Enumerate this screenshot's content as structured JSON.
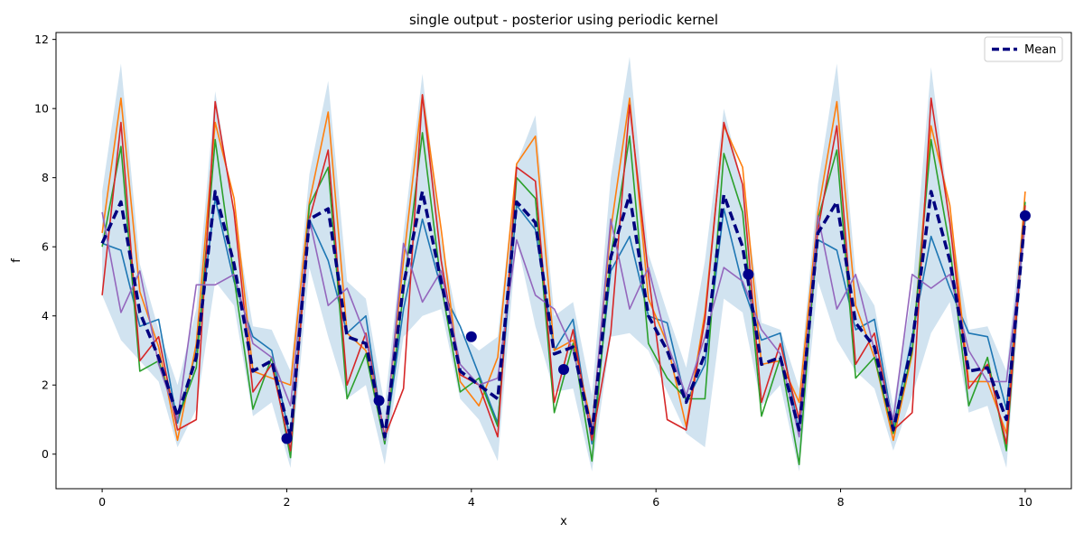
{
  "chart_data": {
    "type": "line",
    "title": "single output - posterior using periodic kernel",
    "xlabel": "x",
    "ylabel": "f",
    "xlim": [
      -0.5,
      10.5
    ],
    "ylim": [
      -1.0,
      12.2
    ],
    "xticks": [
      0,
      2,
      4,
      6,
      8,
      10
    ],
    "yticks": [
      0,
      2,
      4,
      6,
      8,
      10,
      12
    ],
    "grid": false,
    "legend": {
      "placement": "top-right",
      "entries": [
        "Mean"
      ]
    },
    "x": [
      0.0,
      0.204,
      0.408,
      0.612,
      0.816,
      1.02,
      1.224,
      1.429,
      1.633,
      1.837,
      2.041,
      2.245,
      2.449,
      2.653,
      2.857,
      3.061,
      3.265,
      3.469,
      3.673,
      3.878,
      4.082,
      4.286,
      4.49,
      4.694,
      4.898,
      5.102,
      5.306,
      5.51,
      5.714,
      5.918,
      6.122,
      6.327,
      6.531,
      6.735,
      6.939,
      7.143,
      7.347,
      7.551,
      7.755,
      7.959,
      8.163,
      8.367,
      8.571,
      8.776,
      8.98,
      9.184,
      9.388,
      9.592,
      9.796,
      10.0
    ],
    "mean": {
      "name": "Mean",
      "color": "#00007f",
      "values": [
        6.1,
        7.3,
        4.1,
        2.8,
        1.1,
        2.8,
        7.6,
        5.5,
        2.4,
        2.7,
        0.5,
        6.8,
        7.1,
        3.4,
        3.2,
        0.5,
        4.9,
        7.6,
        5.0,
        2.4,
        2.0,
        1.6,
        7.3,
        6.7,
        2.9,
        3.1,
        0.6,
        5.7,
        7.5,
        4.0,
        3.0,
        1.5,
        2.9,
        7.5,
        6.0,
        2.6,
        2.8,
        0.7,
        6.4,
        7.3,
        3.8,
        3.1,
        0.7,
        3.2,
        7.6,
        5.6,
        2.4,
        2.5,
        1.0,
        6.9
      ]
    },
    "confidence_band": {
      "color": "#cfe1ef",
      "lower": [
        4.6,
        3.3,
        2.7,
        2.1,
        0.2,
        1.3,
        5.0,
        4.3,
        1.1,
        1.5,
        -0.4,
        5.4,
        3.4,
        1.6,
        2.0,
        -0.3,
        3.4,
        4.0,
        4.2,
        1.6,
        1.0,
        -0.2,
        6.2,
        3.7,
        1.8,
        1.9,
        -0.5,
        3.4,
        3.5,
        3.0,
        1.8,
        0.6,
        0.2,
        4.5,
        4.1,
        1.4,
        2.0,
        -0.5,
        5.0,
        3.3,
        2.4,
        1.9,
        0.1,
        1.7,
        3.5,
        4.4,
        1.2,
        1.4,
        -0.4,
        6.5
      ],
      "upper": [
        7.6,
        11.3,
        5.5,
        3.6,
        2.0,
        4.2,
        10.5,
        7.0,
        3.7,
        3.6,
        2.4,
        8.1,
        10.8,
        5.0,
        4.5,
        1.4,
        6.4,
        11.0,
        6.2,
        3.5,
        3.0,
        3.4,
        8.4,
        9.8,
        4.0,
        4.4,
        1.7,
        8.0,
        11.5,
        5.8,
        4.1,
        2.5,
        5.6,
        10.0,
        7.8,
        3.8,
        3.6,
        1.9,
        7.8,
        11.3,
        5.2,
        4.3,
        1.4,
        4.7,
        11.2,
        6.9,
        3.6,
        3.7,
        2.4,
        7.6
      ]
    },
    "series": [
      {
        "color": "#1f77b4",
        "values": [
          6.1,
          5.9,
          3.7,
          3.9,
          0.9,
          3.0,
          7.4,
          5.0,
          3.4,
          3.0,
          0.4,
          6.8,
          5.6,
          3.5,
          4.0,
          0.3,
          4.2,
          6.8,
          4.8,
          3.7,
          2.3,
          0.9,
          7.2,
          6.5,
          3.0,
          3.9,
          0.3,
          5.3,
          6.3,
          4.0,
          3.8,
          1.5,
          2.6,
          7.1,
          4.9,
          3.3,
          3.5,
          0.6,
          6.2,
          5.9,
          3.6,
          3.9,
          0.8,
          3.4,
          6.3,
          4.8,
          3.5,
          3.4,
          1.3,
          6.8
        ]
      },
      {
        "color": "#ff7f0e",
        "values": [
          6.4,
          10.3,
          4.7,
          3.1,
          0.4,
          3.2,
          9.6,
          7.4,
          2.4,
          2.2,
          2.0,
          7.3,
          9.9,
          3.5,
          3.0,
          0.5,
          5.6,
          10.4,
          6.5,
          2.1,
          1.4,
          2.8,
          8.4,
          9.2,
          3.0,
          3.3,
          0.8,
          6.5,
          10.3,
          4.5,
          3.2,
          0.8,
          4.1,
          9.5,
          8.3,
          2.6,
          2.7,
          1.5,
          7.0,
          10.2,
          4.3,
          2.8,
          0.4,
          2.9,
          9.5,
          7.2,
          2.1,
          2.1,
          0.6,
          7.6
        ]
      },
      {
        "color": "#2ca02c",
        "values": [
          6.0,
          8.9,
          2.4,
          2.7,
          1.0,
          2.5,
          9.1,
          5.1,
          1.3,
          2.8,
          -0.1,
          7.2,
          8.3,
          1.6,
          2.9,
          0.3,
          4.7,
          9.3,
          4.9,
          1.8,
          2.2,
          0.8,
          8.0,
          7.4,
          1.2,
          3.2,
          -0.2,
          5.7,
          9.2,
          3.2,
          2.2,
          1.6,
          1.6,
          8.7,
          7.0,
          1.1,
          2.8,
          -0.3,
          6.8,
          8.8,
          2.2,
          2.8,
          0.6,
          3.0,
          9.1,
          6.0,
          1.4,
          2.8,
          0.1,
          7.3
        ]
      },
      {
        "color": "#d62728",
        "values": [
          4.6,
          9.6,
          2.7,
          3.4,
          0.7,
          1.0,
          10.2,
          7.0,
          1.8,
          2.6,
          0.1,
          6.8,
          8.8,
          2.0,
          3.5,
          0.5,
          1.9,
          10.4,
          5.6,
          2.3,
          2.0,
          0.5,
          8.3,
          7.9,
          1.5,
          3.6,
          0.4,
          3.5,
          10.1,
          5.2,
          1.0,
          0.7,
          3.9,
          9.6,
          7.8,
          1.5,
          3.2,
          1.0,
          6.5,
          9.5,
          2.6,
          3.5,
          0.7,
          1.2,
          10.3,
          6.7,
          1.9,
          2.6,
          0.3,
          7.2
        ]
      },
      {
        "color": "#9467bd",
        "values": [
          7.0,
          4.1,
          5.3,
          2.6,
          1.0,
          4.9,
          4.9,
          5.2,
          3.2,
          2.8,
          1.4,
          6.8,
          4.3,
          4.8,
          3.4,
          0.4,
          6.1,
          4.4,
          5.3,
          2.6,
          2.0,
          2.2,
          6.2,
          4.6,
          4.2,
          3.0,
          0.7,
          6.8,
          4.2,
          5.4,
          3.2,
          1.7,
          3.4,
          5.4,
          5.0,
          3.6,
          2.9,
          0.5,
          6.9,
          4.2,
          5.2,
          3.0,
          1.0,
          5.2,
          4.8,
          5.2,
          3.0,
          2.1,
          2.1,
          6.6
        ]
      }
    ],
    "observations": {
      "color": "#00008b",
      "x": [
        2.0,
        3.0,
        4.0,
        5.0,
        7.0,
        10.0
      ],
      "y": [
        0.45,
        1.55,
        3.4,
        2.45,
        5.2,
        6.9
      ]
    }
  }
}
